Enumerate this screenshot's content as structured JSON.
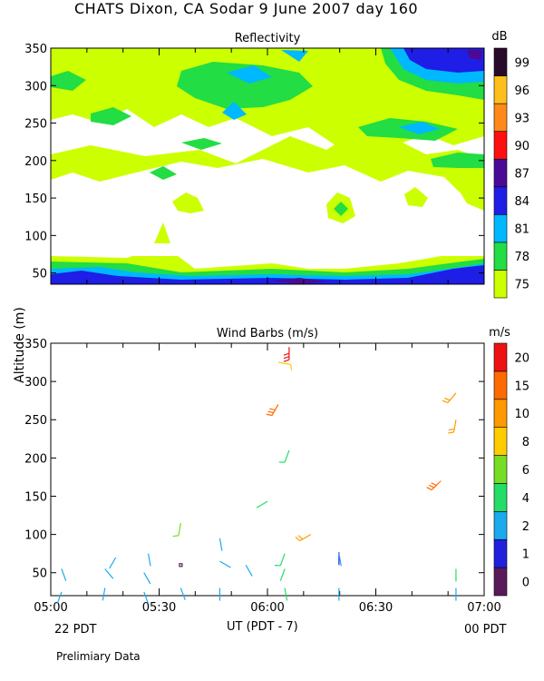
{
  "title": "CHATS Dixon, CA  Sodar   9 June 2007  day 160",
  "footnote": "Prelimiary Data",
  "shared_x": {
    "axis_label": "UT  (PDT - 7)",
    "ticks": [
      "05:00",
      "05:30",
      "06:00",
      "06:30",
      "07:00"
    ],
    "left_sublabel": "22 PDT",
    "right_sublabel": "00 PDT"
  },
  "y_axis_label": "Altitude (m)",
  "chart_data": [
    {
      "type": "heatmap",
      "title": "Reflectivity",
      "ylim": [
        35,
        350
      ],
      "xlim": [
        "05:00",
        "07:00"
      ],
      "yticks": [
        50,
        100,
        150,
        200,
        250,
        300,
        350
      ],
      "colorbar": {
        "unit": "dB",
        "labels": [
          "75",
          "78",
          "81",
          "84",
          "87",
          "90",
          "93",
          "96",
          "99"
        ],
        "colors": [
          "#ccff00",
          "#22dd44",
          "#00b8ff",
          "#1e1ee6",
          "#4b0a96",
          "#ff1010",
          "#ff8a1a",
          "#ffbf1a",
          "#2a0a2a"
        ]
      },
      "regions_note": "Band of high reflectivity (78-87 dB) near 40-70 m; patchy 75-84 dB echoes above 150 m"
    },
    {
      "type": "scatter",
      "title": "Wind Barbs (m/s)",
      "ylim": [
        20,
        350
      ],
      "xlim": [
        "05:00",
        "07:00"
      ],
      "yticks": [
        50,
        100,
        150,
        200,
        250,
        300,
        350
      ],
      "colorbar": {
        "unit": "m/s",
        "labels": [
          "0",
          "1",
          "2",
          "4",
          "6",
          "8",
          "10",
          "15",
          "20"
        ],
        "colors": [
          "#5a1a5a",
          "#2020dd",
          "#1aaaee",
          "#22dd66",
          "#77dd22",
          "#ffcc00",
          "#ff9900",
          "#ff6a00",
          "#ee1111"
        ]
      },
      "barbs": [
        {
          "t": 5.05,
          "alt": 25,
          "speed": 2.5,
          "dir": 200
        },
        {
          "t": 5.05,
          "alt": 55,
          "speed": 2,
          "dir": 160
        },
        {
          "t": 5.25,
          "alt": 30,
          "speed": 2,
          "dir": 190
        },
        {
          "t": 5.25,
          "alt": 55,
          "speed": 2,
          "dir": 140
        },
        {
          "t": 5.3,
          "alt": 70,
          "speed": 2.5,
          "dir": 210
        },
        {
          "t": 5.43,
          "alt": 25,
          "speed": 2.5,
          "dir": 160
        },
        {
          "t": 5.43,
          "alt": 50,
          "speed": 2,
          "dir": 150
        },
        {
          "t": 5.45,
          "alt": 75,
          "speed": 2,
          "dir": 170
        },
        {
          "t": 5.6,
          "alt": 30,
          "speed": 2,
          "dir": 160
        },
        {
          "t": 5.6,
          "alt": 60,
          "speed": 0.5,
          "dir": 0
        },
        {
          "t": 5.6,
          "alt": 115,
          "speed": 7,
          "dir": 190
        },
        {
          "t": 5.78,
          "alt": 30,
          "speed": 3,
          "dir": 180
        },
        {
          "t": 5.78,
          "alt": 65,
          "speed": 2,
          "dir": 120
        },
        {
          "t": 5.78,
          "alt": 95,
          "speed": 2,
          "dir": 170
        },
        {
          "t": 5.9,
          "alt": 60,
          "speed": 2,
          "dir": 150
        },
        {
          "t": 5.95,
          "alt": 135,
          "speed": 4.5,
          "dir": 60
        },
        {
          "t": 6.08,
          "alt": 30,
          "speed": 4,
          "dir": 170
        },
        {
          "t": 6.08,
          "alt": 55,
          "speed": 4,
          "dir": 200
        },
        {
          "t": 6.08,
          "alt": 75,
          "speed": 5,
          "dir": 200
        },
        {
          "t": 6.1,
          "alt": 210,
          "speed": 5,
          "dir": 200
        },
        {
          "t": 6.05,
          "alt": 270,
          "speed": 15,
          "dir": 210
        },
        {
          "t": 6.05,
          "alt": 325,
          "speed": 8,
          "dir": 100
        },
        {
          "t": 6.1,
          "alt": 345,
          "speed": 20,
          "dir": 180
        },
        {
          "t": 6.2,
          "alt": 100,
          "speed": 10,
          "dir": 240
        },
        {
          "t": 6.33,
          "alt": 30,
          "speed": 2,
          "dir": 180
        },
        {
          "t": 6.33,
          "alt": 60,
          "speed": 1,
          "dir": 0
        },
        {
          "t": 6.33,
          "alt": 75,
          "speed": 2,
          "dir": 170
        },
        {
          "t": 6.8,
          "alt": 170,
          "speed": 18,
          "dir": 225
        },
        {
          "t": 6.87,
          "alt": 30,
          "speed": 2,
          "dir": 180
        },
        {
          "t": 6.87,
          "alt": 55,
          "speed": 4,
          "dir": 180
        },
        {
          "t": 6.87,
          "alt": 250,
          "speed": 10,
          "dir": 190
        },
        {
          "t": 6.87,
          "alt": 285,
          "speed": 10,
          "dir": 220
        }
      ]
    }
  ]
}
